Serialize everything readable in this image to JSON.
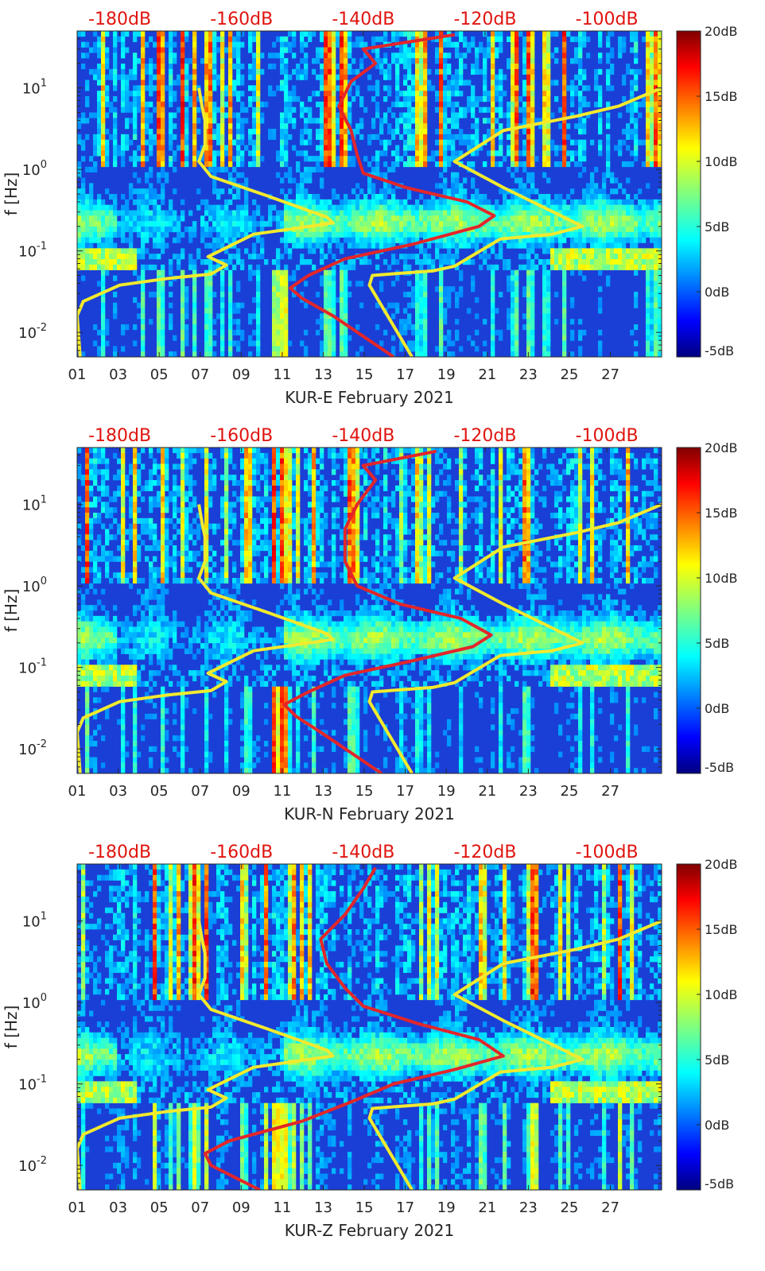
{
  "figure": {
    "colormap": "jet",
    "overlay_colors": {
      "noise_models": "#f2ea2e",
      "median_psd": "#e3262a",
      "top_axis_text": "#e0140f"
    }
  },
  "chart_data": [
    {
      "type": "heatmap",
      "title": "",
      "xlabel": "KUR-E February 2021",
      "ylabel": "f [Hz]",
      "x_ticks": [
        "01",
        "03",
        "05",
        "07",
        "09",
        "11",
        "13",
        "15",
        "17",
        "19",
        "21",
        "23",
        "25",
        "27"
      ],
      "x_range_days": [
        1,
        29.5
      ],
      "y_scale": "log",
      "y_ticks": [
        {
          "v": 0.01,
          "base": "10",
          "exp": "-2"
        },
        {
          "v": 0.1,
          "base": "10",
          "exp": "-1"
        },
        {
          "v": 1,
          "base": "10",
          "exp": "0"
        },
        {
          "v": 10,
          "base": "10",
          "exp": "1"
        }
      ],
      "ylim": [
        0.005,
        50
      ],
      "top_axis": {
        "ticks": [
          "-180dB",
          "-160dB",
          "-140dB",
          "-120dB",
          "-100dB"
        ],
        "range_db": [
          -187,
          -91
        ]
      },
      "colorbar": {
        "ticks": [
          "20dB",
          "15dB",
          "10dB",
          "5dB",
          "0dB",
          "-5dB"
        ],
        "range": [
          -5,
          20
        ]
      },
      "noise_model_low": {
        "points": [
          [
            -186.5,
            0.005
          ],
          [
            -187,
            0.016
          ],
          [
            -186,
            0.024
          ],
          [
            -180,
            0.038
          ],
          [
            -172,
            0.046
          ],
          [
            -165,
            0.052
          ],
          [
            -162.5,
            0.067
          ],
          [
            -165.5,
            0.085
          ],
          [
            -158,
            0.16
          ],
          [
            -145,
            0.22
          ],
          [
            -146,
            0.26
          ],
          [
            -156,
            0.48
          ],
          [
            -165,
            0.82
          ],
          [
            -167,
            1.25
          ],
          [
            -166,
            2.0
          ],
          [
            -166,
            4.0
          ],
          [
            -166.5,
            6.0
          ],
          [
            -167,
            10
          ]
        ]
      },
      "noise_model_high": {
        "points": [
          [
            -132,
            0.005
          ],
          [
            -139,
            0.038
          ],
          [
            -138.5,
            0.05
          ],
          [
            -128.5,
            0.057
          ],
          [
            -125,
            0.065
          ],
          [
            -117.5,
            0.14
          ],
          [
            -109,
            0.16
          ],
          [
            -104,
            0.2
          ],
          [
            -117,
            0.6
          ],
          [
            -125,
            1.25
          ],
          [
            -117,
            3.0
          ],
          [
            -105,
            4.5
          ],
          [
            -98,
            6.0
          ],
          [
            -91,
            10
          ]
        ]
      },
      "median_psd": {
        "points": [
          [
            -135,
            0.005
          ],
          [
            -145,
            0.016
          ],
          [
            -150,
            0.026
          ],
          [
            -152,
            0.035
          ],
          [
            -149,
            0.05
          ],
          [
            -143,
            0.08
          ],
          [
            -132,
            0.12
          ],
          [
            -121,
            0.2
          ],
          [
            -118.5,
            0.27
          ],
          [
            -123,
            0.4
          ],
          [
            -133,
            0.6
          ],
          [
            -140,
            0.9
          ],
          [
            -141,
            1.5
          ],
          [
            -142,
            3
          ],
          [
            -144,
            6
          ],
          [
            -142,
            12
          ],
          [
            -138,
            20
          ],
          [
            -140,
            30
          ],
          [
            -125,
            45
          ]
        ]
      }
    },
    {
      "type": "heatmap",
      "title": "",
      "xlabel": "KUR-N February 2021",
      "ylabel": "f [Hz]",
      "x_ticks": [
        "01",
        "03",
        "05",
        "07",
        "09",
        "11",
        "13",
        "15",
        "17",
        "19",
        "21",
        "23",
        "25",
        "27"
      ],
      "x_range_days": [
        1,
        29.5
      ],
      "y_scale": "log",
      "y_ticks": [
        {
          "v": 0.01,
          "base": "10",
          "exp": "-2"
        },
        {
          "v": 0.1,
          "base": "10",
          "exp": "-1"
        },
        {
          "v": 1,
          "base": "10",
          "exp": "0"
        },
        {
          "v": 10,
          "base": "10",
          "exp": "1"
        }
      ],
      "ylim": [
        0.005,
        50
      ],
      "top_axis": {
        "ticks": [
          "-180dB",
          "-160dB",
          "-140dB",
          "-120dB",
          "-100dB"
        ],
        "range_db": [
          -187,
          -91
        ]
      },
      "colorbar": {
        "ticks": [
          "20dB",
          "15dB",
          "10dB",
          "5dB",
          "0dB",
          "-5dB"
        ],
        "range": [
          -5,
          20
        ]
      },
      "noise_model_low": {
        "points": [
          [
            -186.5,
            0.005
          ],
          [
            -187,
            0.016
          ],
          [
            -186,
            0.024
          ],
          [
            -180,
            0.038
          ],
          [
            -172,
            0.046
          ],
          [
            -165,
            0.052
          ],
          [
            -162.5,
            0.067
          ],
          [
            -165.5,
            0.085
          ],
          [
            -158,
            0.16
          ],
          [
            -145,
            0.22
          ],
          [
            -146,
            0.26
          ],
          [
            -156,
            0.48
          ],
          [
            -165,
            0.82
          ],
          [
            -167,
            1.25
          ],
          [
            -166,
            2.0
          ],
          [
            -166,
            4.0
          ],
          [
            -166.5,
            6.0
          ],
          [
            -167,
            10
          ]
        ]
      },
      "noise_model_high": {
        "points": [
          [
            -132,
            0.005
          ],
          [
            -139,
            0.038
          ],
          [
            -138.5,
            0.05
          ],
          [
            -128.5,
            0.057
          ],
          [
            -125,
            0.065
          ],
          [
            -117.5,
            0.14
          ],
          [
            -109,
            0.16
          ],
          [
            -104,
            0.2
          ],
          [
            -117,
            0.6
          ],
          [
            -125,
            1.25
          ],
          [
            -117,
            3.0
          ],
          [
            -105,
            4.5
          ],
          [
            -98,
            6.0
          ],
          [
            -91,
            10
          ]
        ]
      },
      "median_psd": {
        "points": [
          [
            -137,
            0.005
          ],
          [
            -147,
            0.016
          ],
          [
            -151,
            0.025
          ],
          [
            -153,
            0.035
          ],
          [
            -149,
            0.05
          ],
          [
            -143,
            0.08
          ],
          [
            -132,
            0.12
          ],
          [
            -122,
            0.18
          ],
          [
            -119,
            0.25
          ],
          [
            -124,
            0.4
          ],
          [
            -134,
            0.6
          ],
          [
            -141,
            1.0
          ],
          [
            -143,
            2
          ],
          [
            -143,
            5
          ],
          [
            -141,
            10
          ],
          [
            -138,
            20
          ],
          [
            -140,
            30
          ],
          [
            -128,
            45
          ]
        ]
      }
    },
    {
      "type": "heatmap",
      "title": "",
      "xlabel": "KUR-Z February 2021",
      "ylabel": "f [Hz]",
      "x_ticks": [
        "01",
        "03",
        "05",
        "07",
        "09",
        "11",
        "13",
        "15",
        "17",
        "19",
        "21",
        "23",
        "25",
        "27"
      ],
      "x_range_days": [
        1,
        29.5
      ],
      "y_scale": "log",
      "y_ticks": [
        {
          "v": 0.01,
          "base": "10",
          "exp": "-2"
        },
        {
          "v": 0.1,
          "base": "10",
          "exp": "-1"
        },
        {
          "v": 1,
          "base": "10",
          "exp": "0"
        },
        {
          "v": 10,
          "base": "10",
          "exp": "1"
        }
      ],
      "ylim": [
        0.005,
        50
      ],
      "top_axis": {
        "ticks": [
          "-180dB",
          "-160dB",
          "-140dB",
          "-120dB",
          "-100dB"
        ],
        "range_db": [
          -187,
          -91
        ]
      },
      "colorbar": {
        "ticks": [
          "20dB",
          "15dB",
          "10dB",
          "5dB",
          "0dB",
          "-5dB"
        ],
        "range": [
          -5,
          20
        ]
      },
      "noise_model_low": {
        "points": [
          [
            -186.5,
            0.005
          ],
          [
            -187,
            0.016
          ],
          [
            -186,
            0.024
          ],
          [
            -180,
            0.038
          ],
          [
            -172,
            0.046
          ],
          [
            -165,
            0.052
          ],
          [
            -162.5,
            0.067
          ],
          [
            -165.5,
            0.085
          ],
          [
            -158,
            0.16
          ],
          [
            -145,
            0.22
          ],
          [
            -146,
            0.26
          ],
          [
            -156,
            0.48
          ],
          [
            -165,
            0.82
          ],
          [
            -167,
            1.25
          ],
          [
            -166,
            2.0
          ],
          [
            -166,
            4.0
          ],
          [
            -166.5,
            6.0
          ],
          [
            -167,
            10
          ]
        ]
      },
      "noise_model_high": {
        "points": [
          [
            -132,
            0.005
          ],
          [
            -139,
            0.038
          ],
          [
            -138.5,
            0.05
          ],
          [
            -128.5,
            0.057
          ],
          [
            -125,
            0.065
          ],
          [
            -117.5,
            0.14
          ],
          [
            -109,
            0.16
          ],
          [
            -104,
            0.2
          ],
          [
            -117,
            0.6
          ],
          [
            -125,
            1.25
          ],
          [
            -117,
            3.0
          ],
          [
            -105,
            4.5
          ],
          [
            -98,
            6.0
          ],
          [
            -91,
            10
          ]
        ]
      },
      "median_psd": {
        "points": [
          [
            -157,
            0.005
          ],
          [
            -165,
            0.01
          ],
          [
            -166,
            0.014
          ],
          [
            -162,
            0.02
          ],
          [
            -150,
            0.035
          ],
          [
            -142,
            0.06
          ],
          [
            -135,
            0.1
          ],
          [
            -125,
            0.15
          ],
          [
            -117,
            0.22
          ],
          [
            -121,
            0.35
          ],
          [
            -131,
            0.55
          ],
          [
            -140,
            0.9
          ],
          [
            -143,
            1.5
          ],
          [
            -146,
            3
          ],
          [
            -147,
            6
          ],
          [
            -143,
            12
          ],
          [
            -140,
            25
          ],
          [
            -138,
            45
          ]
        ]
      }
    }
  ]
}
